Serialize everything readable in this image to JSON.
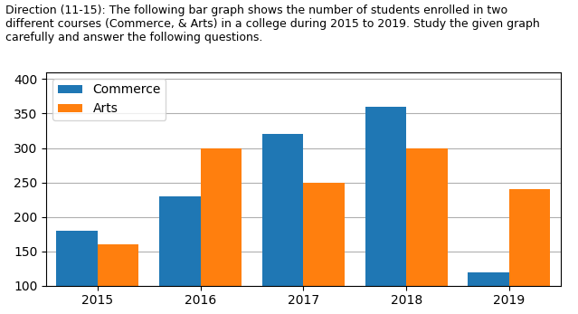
{
  "chart_data": {
    "type": "bar",
    "title": "Direction (11-15): The following bar graph shows the number of students enrolled in two\ndifferent courses (Commerce, & Arts) in a college during 2015 to 2019. Study the given graph\ncarefully and answer the following questions.",
    "categories": [
      "2015",
      "2016",
      "2017",
      "2018",
      "2019"
    ],
    "series": [
      {
        "name": "Commerce",
        "values": [
          180,
          230,
          320,
          360,
          120
        ]
      },
      {
        "name": "Arts",
        "values": [
          160,
          300,
          250,
          300,
          240
        ]
      }
    ],
    "ylim": [
      100,
      410
    ],
    "yticks": [
      100,
      150,
      200,
      250,
      300,
      350,
      400
    ],
    "grid": true,
    "legend": "upper left"
  }
}
